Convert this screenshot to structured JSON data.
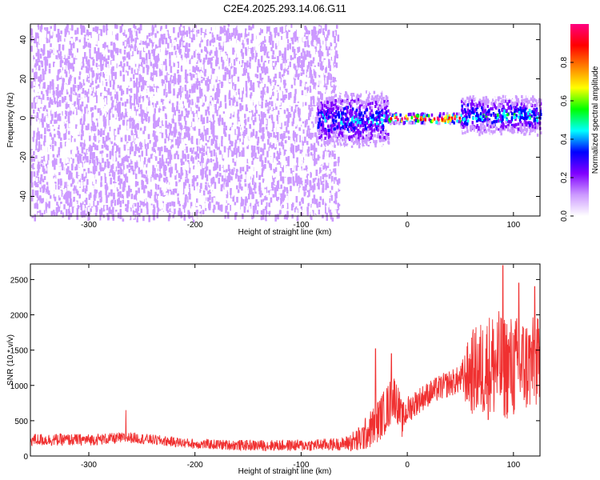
{
  "title": "C2E4.2025.293.14.06.G11",
  "chart_data": [
    {
      "type": "heatmap",
      "title": "C2E4.2025.293.14.06.G11",
      "xlabel": "Height of straight line (km)",
      "ylabel": "Frequency (Hz)",
      "xlim": [
        -355,
        125
      ],
      "ylim": [
        -50,
        48
      ],
      "x_ticks": [
        -300,
        -200,
        -100,
        0,
        100
      ],
      "x_tick_labels": [
        "-300",
        "-200",
        "-100",
        "0",
        "100"
      ],
      "y_ticks": [
        -40,
        -20,
        0,
        20,
        40
      ],
      "y_tick_labels": [
        "-40",
        "-20",
        "0",
        "20",
        "40"
      ],
      "colorbar": {
        "label": "Normalized spectral amplitude",
        "range": [
          0,
          1
        ],
        "ticks": [
          0.0,
          0.2,
          0.4,
          0.6,
          0.8
        ],
        "tick_labels": [
          "0.0",
          "0.2",
          "0.4",
          "0.6",
          "0.8"
        ],
        "colormap": [
          "#ffffff",
          "#cc99ff",
          "#8000ff",
          "#0000ff",
          "#00ffff",
          "#00ff00",
          "#ffff00",
          "#ff8000",
          "#ff0000",
          "#ff0080"
        ]
      },
      "regions": [
        {
          "x_range": [
            -355,
            -65
          ],
          "freq_range": [
            -50,
            48
          ],
          "amplitude": 0.12,
          "description": "broadband noise"
        },
        {
          "x_range": [
            -65,
            -50
          ],
          "freq_range": [
            -50,
            48
          ],
          "amplitude": 0.05,
          "description": "sparse noise"
        },
        {
          "x_range": [
            -85,
            -18
          ],
          "freq_range": [
            -15,
            15
          ],
          "amplitude": 0.35,
          "description": "turbulent cluster"
        },
        {
          "x_range": [
            -18,
            50
          ],
          "freq_range": [
            -2,
            3
          ],
          "amplitude": 0.9,
          "description": "narrow line near 0 Hz"
        },
        {
          "x_range": [
            50,
            125
          ],
          "freq_range": [
            -8,
            12
          ],
          "amplitude": 0.4,
          "description": "spread cluster"
        }
      ]
    },
    {
      "type": "line",
      "xlabel": "Height of straight line (km)",
      "ylabel": "SNR (10 * v/v)",
      "xlim": [
        -355,
        125
      ],
      "ylim": [
        0,
        2720
      ],
      "x_ticks": [
        -300,
        -200,
        -100,
        0,
        100
      ],
      "x_tick_labels": [
        "-300",
        "-200",
        "-100",
        "0",
        "100"
      ],
      "y_ticks": [
        0,
        500,
        1000,
        1500,
        2000,
        2500
      ],
      "y_tick_labels": [
        "0",
        "500",
        "1000",
        "1500",
        "2000",
        "2500"
      ],
      "color": "#f03030",
      "baseline": {
        "x": [
          -355,
          -300,
          -260,
          -200,
          -150,
          -100,
          -60,
          -45,
          -30,
          -20,
          -12,
          -8,
          -5,
          0,
          10,
          20,
          30,
          40,
          50,
          60,
          70,
          80,
          90,
          100,
          110,
          125
        ],
        "y": [
          230,
          230,
          260,
          170,
          150,
          150,
          170,
          230,
          450,
          650,
          850,
          700,
          500,
          650,
          780,
          880,
          960,
          1030,
          1080,
          1180,
          1230,
          1280,
          1280,
          1250,
          1280,
          1320
        ]
      },
      "spread": {
        "x": [
          -355,
          -200,
          -60,
          -45,
          -30,
          -15,
          0,
          20,
          50,
          60,
          80,
          100,
          125
        ],
        "y": [
          90,
          70,
          90,
          200,
          300,
          350,
          200,
          180,
          200,
          600,
          800,
          750,
          650
        ]
      },
      "peaks": [
        {
          "x": -265,
          "y": 650
        },
        {
          "x": -30,
          "y": 1520
        },
        {
          "x": -15,
          "y": 1450
        },
        {
          "x": 90,
          "y": 2700
        },
        {
          "x": 105,
          "y": 2450
        },
        {
          "x": 120,
          "y": 2400
        }
      ]
    }
  ]
}
